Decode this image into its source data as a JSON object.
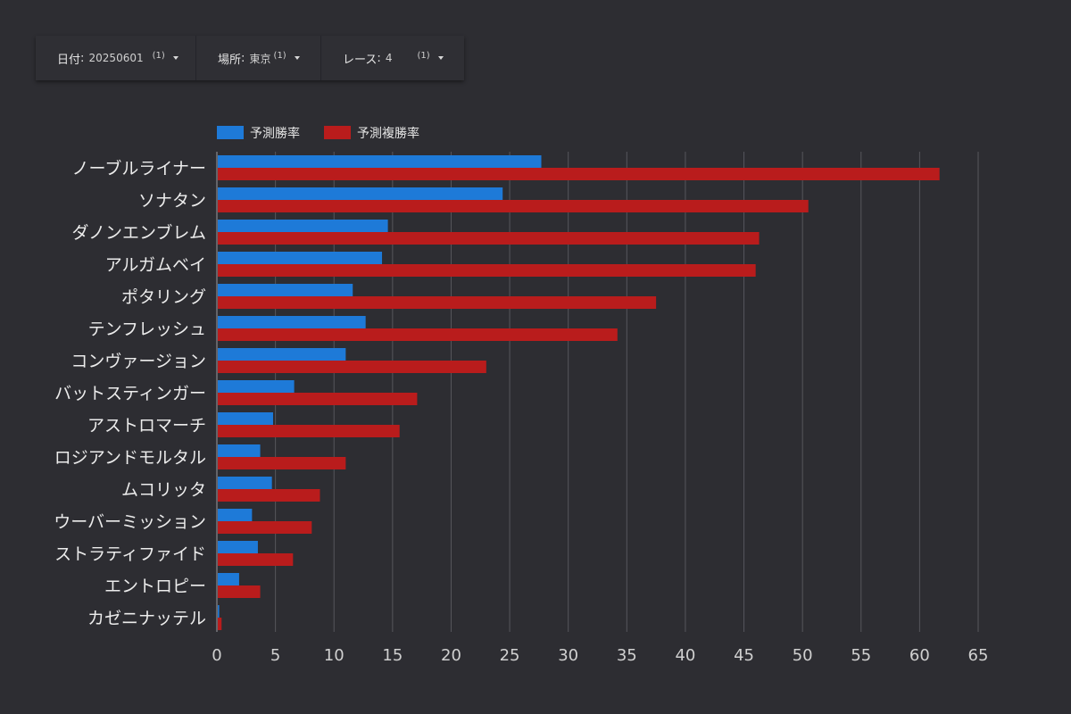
{
  "filters": [
    {
      "label": "日付",
      "value": "20250601",
      "count": "(1)"
    },
    {
      "label": "場所",
      "value": "東京",
      "count": "(1)"
    },
    {
      "label": "レース",
      "value": "4",
      "count": "(1)"
    }
  ],
  "chart_data": {
    "type": "bar",
    "orientation": "horizontal",
    "categories": [
      "ノーブルライナー",
      "ソナタン",
      "ダノンエンブレム",
      "アルガムベイ",
      "ポタリング",
      "テンフレッシュ",
      "コンヴァージョン",
      "バットスティンガー",
      "アストロマーチ",
      "ロジアンドモルタル",
      "ムコリッタ",
      "ウーバーミッション",
      "ストラティファイド",
      "エントロピー",
      "カゼニナッテル"
    ],
    "series": [
      {
        "name": "予測勝率",
        "color": "#1e7ad8",
        "values": [
          27.7,
          24.4,
          14.6,
          14.1,
          11.6,
          12.7,
          11.0,
          6.6,
          4.8,
          3.7,
          4.7,
          3.0,
          3.5,
          1.9,
          0.2
        ]
      },
      {
        "name": "予測複勝率",
        "color": "#b91c1c",
        "values": [
          61.7,
          50.5,
          46.3,
          46.0,
          37.5,
          34.2,
          23.0,
          17.1,
          15.6,
          11.0,
          8.8,
          8.1,
          6.5,
          3.7,
          0.4
        ]
      }
    ],
    "xlim": [
      0,
      65
    ],
    "xticks": [
      0,
      5,
      10,
      15,
      20,
      25,
      30,
      35,
      40,
      45,
      50,
      55,
      60,
      65
    ],
    "grid": true,
    "legend": "top-left"
  }
}
